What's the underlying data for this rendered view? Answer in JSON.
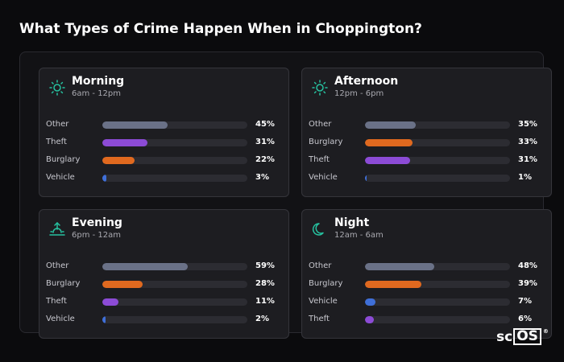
{
  "title": "What Types of Crime Happen When in Choppington?",
  "logo": {
    "prefix": "sc",
    "boxed": "OS",
    "mark": "®"
  },
  "colors": {
    "Other": "#6a7187",
    "Theft": "#8c4bd6",
    "Burglary": "#e0691f",
    "Vehicle": "#3f6fd8",
    "icon": "#26c2a0",
    "track": "#2c2c32"
  },
  "chart_data": [
    {
      "type": "bar",
      "title": "Morning",
      "subtitle": "6am - 12pm",
      "icon": "sun-icon",
      "categories": [
        "Other",
        "Theft",
        "Burglary",
        "Vehicle"
      ],
      "values": [
        45,
        31,
        22,
        3
      ],
      "labels": [
        "45%",
        "31%",
        "22%",
        "3%"
      ],
      "xlim": [
        0,
        100
      ]
    },
    {
      "type": "bar",
      "title": "Afternoon",
      "subtitle": "12pm - 6pm",
      "icon": "sun-icon",
      "categories": [
        "Other",
        "Burglary",
        "Theft",
        "Vehicle"
      ],
      "values": [
        35,
        33,
        31,
        1
      ],
      "labels": [
        "35%",
        "33%",
        "31%",
        "1%"
      ],
      "xlim": [
        0,
        100
      ]
    },
    {
      "type": "bar",
      "title": "Evening",
      "subtitle": "6pm - 12am",
      "icon": "sunset-icon",
      "categories": [
        "Other",
        "Burglary",
        "Theft",
        "Vehicle"
      ],
      "values": [
        59,
        28,
        11,
        2
      ],
      "labels": [
        "59%",
        "28%",
        "11%",
        "2%"
      ],
      "xlim": [
        0,
        100
      ]
    },
    {
      "type": "bar",
      "title": "Night",
      "subtitle": "12am - 6am",
      "icon": "moon-icon",
      "categories": [
        "Other",
        "Burglary",
        "Vehicle",
        "Theft"
      ],
      "values": [
        48,
        39,
        7,
        6
      ],
      "labels": [
        "48%",
        "39%",
        "7%",
        "6%"
      ],
      "xlim": [
        0,
        100
      ]
    }
  ]
}
